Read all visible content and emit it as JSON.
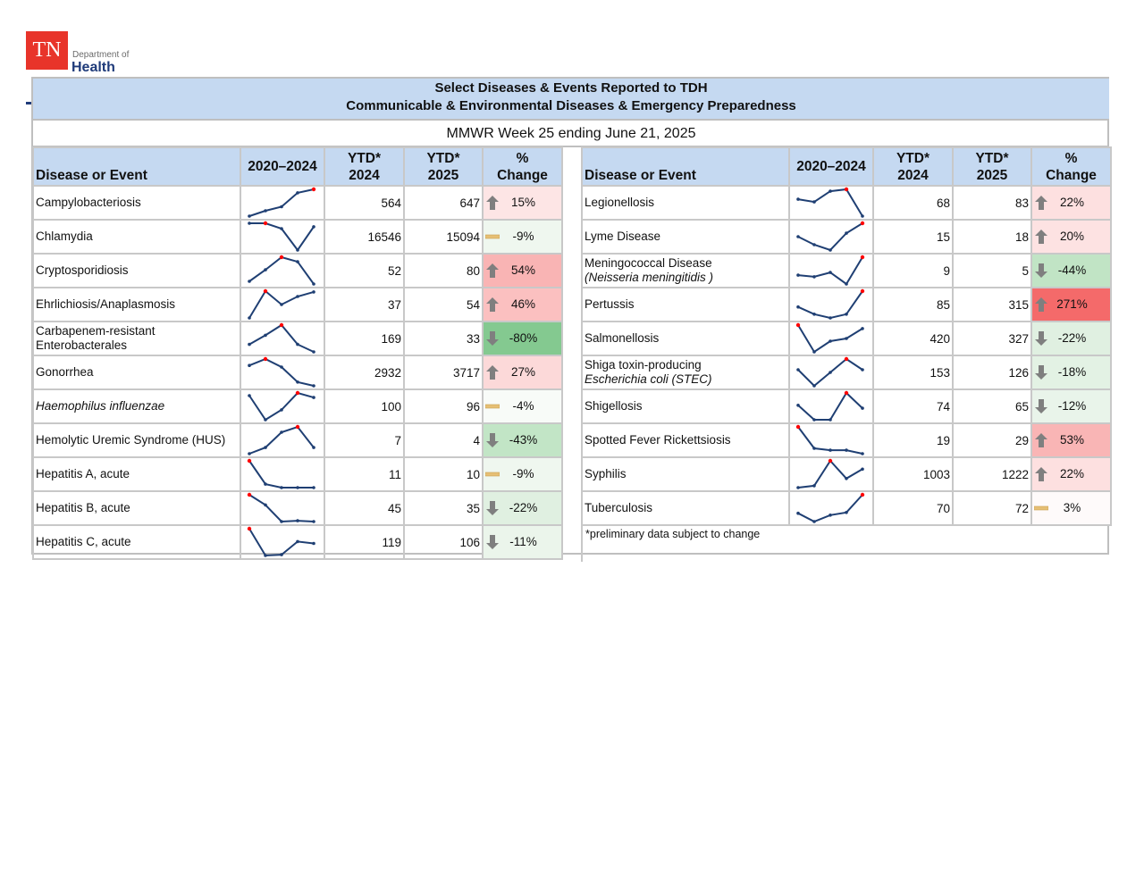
{
  "logo": {
    "abbr": "TN",
    "line1": "Department of",
    "line2": "Health"
  },
  "title": {
    "line1": "Select Diseases & Events Reported to TDH",
    "line2": "Communicable & Environmental Diseases & Emergency Preparedness"
  },
  "week": "MMWR Week 25 ending June 21, 2025",
  "headers": {
    "disease": "Disease or Event",
    "trend": "2020–2024",
    "ytd24_a": "YTD*",
    "ytd24_b": "2024",
    "ytd25_a": "YTD*",
    "ytd25_b": "2025",
    "chg_a": "%",
    "chg_b": "Change"
  },
  "footnote": "*preliminary data subject to change",
  "colors": {
    "header": "#c5d9f1",
    "spark_line": "#1f3f73",
    "spark_max": "#ff0000",
    "arrow": "#7f7f7f",
    "dash": "#e6bf75"
  },
  "left": [
    {
      "name": "Campylobacteriosis",
      "ytd2024": "564",
      "ytd2025": "647",
      "change": "15%",
      "dir": "up",
      "bg": "#fde5e5",
      "spark": [
        0,
        0.2,
        0.35,
        0.87,
        1
      ],
      "hi": 4
    },
    {
      "name": "Chlamydia",
      "ytd2024": "16546",
      "ytd2025": "15094",
      "change": "-9%",
      "dir": "flat",
      "bg": "#eff7ef",
      "spark": [
        1,
        1,
        0.8,
        0,
        0.87
      ],
      "hi": 1
    },
    {
      "name": "Cryptosporidiosis",
      "ytd2024": "52",
      "ytd2025": "80",
      "change": "54%",
      "dir": "up",
      "bg": "#f9b4b4",
      "spark": [
        0.1,
        0.53,
        1,
        0.83,
        0
      ],
      "hi": 2
    },
    {
      "name": "Ehrlichiosis/Anaplasmosis",
      "ytd2024": "37",
      "ytd2025": "54",
      "change": "46%",
      "dir": "up",
      "bg": "#fbc0c0",
      "spark": [
        0,
        1,
        0.5,
        0.8,
        0.97
      ],
      "hi": 1
    },
    {
      "name": "Carbapenem-resistant",
      "name2": "Enterobacterales",
      "ytd2024": "169",
      "ytd2025": "33",
      "change": "-80%",
      "dir": "down",
      "bg": "#84c990",
      "spark": [
        0.28,
        0.62,
        1,
        0.28,
        0
      ],
      "hi": 2
    },
    {
      "name": "Gonorrhea",
      "ytd2024": "2932",
      "ytd2025": "3717",
      "change": "27%",
      "dir": "up",
      "bg": "#fcd9d9",
      "spark": [
        0.76,
        1,
        0.7,
        0.14,
        0
      ],
      "hi": 1
    },
    {
      "name": "Haemophilus influenzae",
      "italic": true,
      "ytd2024": "100",
      "ytd2025": "96",
      "change": "-4%",
      "dir": "flat",
      "bg": "#f8fbf8",
      "spark": [
        0.9,
        0,
        0.37,
        1,
        0.83
      ],
      "hi": 3
    },
    {
      "name": "Hemolytic Uremic Syndrome (HUS)",
      "ytd2024": "7",
      "ytd2025": "4",
      "change": "-43%",
      "dir": "down",
      "bg": "#c2e5c6",
      "spark": [
        0,
        0.23,
        0.8,
        1,
        0.23
      ],
      "hi": 3
    },
    {
      "name": "Hepatitis A, acute",
      "ytd2024": "11",
      "ytd2025": "10",
      "change": "-9%",
      "dir": "flat",
      "bg": "#eff7ef",
      "spark": [
        1,
        0.13,
        0,
        0,
        0
      ],
      "hi": 0
    },
    {
      "name": "Hepatitis B, acute",
      "ytd2024": "45",
      "ytd2025": "35",
      "change": "-22%",
      "dir": "down",
      "bg": "#e0f0e1",
      "spark": [
        1,
        0.62,
        0,
        0.03,
        0
      ],
      "hi": 0
    },
    {
      "name": "Hepatitis C, acute",
      "ytd2024": "119",
      "ytd2025": "106",
      "change": "-11%",
      "dir": "down",
      "bg": "#ebf5eb",
      "spark": [
        1,
        0,
        0.03,
        0.52,
        0.45
      ],
      "hi": 0
    }
  ],
  "right": [
    {
      "name": "Legionellosis",
      "ytd2024": "68",
      "ytd2025": "83",
      "change": "22%",
      "dir": "up",
      "bg": "#fde0e0",
      "spark": [
        0.63,
        0.53,
        0.93,
        1,
        0
      ],
      "hi": 3
    },
    {
      "name": "Lyme Disease",
      "ytd2024": "15",
      "ytd2025": "18",
      "change": "20%",
      "dir": "up",
      "bg": "#fde2e2",
      "spark": [
        0.5,
        0.2,
        0,
        0.63,
        1
      ],
      "hi": 4
    },
    {
      "name": "Meningococcal Disease",
      "name2": "(Neisseria meningitidis )",
      "italic2": true,
      "ytd2024": "9",
      "ytd2025": "5",
      "change": "-44%",
      "dir": "down",
      "bg": "#c1e4c5",
      "spark": [
        0.33,
        0.27,
        0.43,
        0,
        1
      ],
      "hi": 4
    },
    {
      "name": "Pertussis",
      "ytd2024": "85",
      "ytd2025": "315",
      "change": "271%",
      "dir": "up",
      "bg": "#f46a6a",
      "spark": [
        0.41,
        0.14,
        0,
        0.14,
        1
      ],
      "hi": 4
    },
    {
      "name": "Salmonellosis",
      "ytd2024": "420",
      "ytd2025": "327",
      "change": "-22%",
      "dir": "down",
      "bg": "#e0f0e1",
      "spark": [
        1,
        0,
        0.4,
        0.5,
        0.87
      ],
      "hi": 0
    },
    {
      "name": "Shiga toxin-producing",
      "name2": "Escherichia coli (STEC)",
      "italic2": true,
      "ytd2024": "153",
      "ytd2025": "126",
      "change": "-18%",
      "dir": "down",
      "bg": "#e3f2e4",
      "spark": [
        0.6,
        0,
        0.5,
        1,
        0.6
      ],
      "hi": 3
    },
    {
      "name": "Shigellosis",
      "ytd2024": "74",
      "ytd2025": "65",
      "change": "-12%",
      "dir": "down",
      "bg": "#e9f4ea",
      "spark": [
        0.54,
        0,
        0,
        1,
        0.43
      ],
      "hi": 3
    },
    {
      "name": "Spotted Fever Rickettsiosis",
      "ytd2024": "19",
      "ytd2025": "29",
      "change": "53%",
      "dir": "up",
      "bg": "#f9b5b5",
      "spark": [
        1,
        0.2,
        0.13,
        0.13,
        0
      ],
      "hi": 0
    },
    {
      "name": "Syphilis",
      "ytd2024": "1003",
      "ytd2025": "1222",
      "change": "22%",
      "dir": "up",
      "bg": "#fde0e0",
      "spark": [
        0,
        0.07,
        1,
        0.34,
        0.69
      ],
      "hi": 2
    },
    {
      "name": "Tuberculosis",
      "ytd2024": "70",
      "ytd2025": "72",
      "change": "3%",
      "dir": "flat",
      "bg": "#fefafa",
      "spark": [
        0.31,
        0,
        0.24,
        0.34,
        1
      ],
      "hi": 4
    }
  ]
}
